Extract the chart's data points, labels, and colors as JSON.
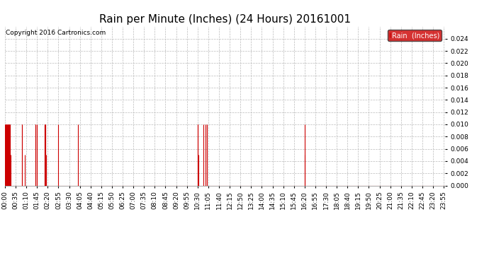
{
  "title": "Rain per Minute (Inches) (24 Hours) 20161001",
  "copyright": "Copyright 2016 Cartronics.com",
  "legend_label": "Rain  (Inches)",
  "legend_bg": "#cc0000",
  "legend_text_color": "#ffffff",
  "bar_color": "#cc0000",
  "background_color": "#ffffff",
  "grid_color": "#bbbbbb",
  "yticks": [
    0.0,
    0.002,
    0.004,
    0.006,
    0.008,
    0.01,
    0.012,
    0.014,
    0.016,
    0.018,
    0.02,
    0.022,
    0.024
  ],
  "title_fontsize": 11,
  "tick_fontsize": 6.5,
  "total_minutes": 1440,
  "rain_events": [
    [
      0,
      0.01
    ],
    [
      1,
      0.01
    ],
    [
      2,
      0.01
    ],
    [
      3,
      0.01
    ],
    [
      4,
      0.01
    ],
    [
      5,
      0.005
    ],
    [
      6,
      0.01
    ],
    [
      7,
      0.01
    ],
    [
      8,
      0.01
    ],
    [
      9,
      0.01
    ],
    [
      10,
      0.01
    ],
    [
      11,
      0.01
    ],
    [
      12,
      0.01
    ],
    [
      13,
      0.01
    ],
    [
      14,
      0.01
    ],
    [
      15,
      0.005
    ],
    [
      16,
      0.01
    ],
    [
      17,
      0.01
    ],
    [
      18,
      0.005
    ],
    [
      55,
      0.01
    ],
    [
      56,
      0.01
    ],
    [
      65,
      0.005
    ],
    [
      100,
      0.01
    ],
    [
      101,
      0.01
    ],
    [
      105,
      0.01
    ],
    [
      130,
      0.01
    ],
    [
      131,
      0.01
    ],
    [
      132,
      0.01
    ],
    [
      133,
      0.01
    ],
    [
      134,
      0.005
    ],
    [
      175,
      0.01
    ],
    [
      240,
      0.01
    ],
    [
      630,
      0.01
    ],
    [
      631,
      0.01
    ],
    [
      632,
      0.005
    ],
    [
      650,
      0.01
    ],
    [
      655,
      0.01
    ],
    [
      660,
      0.01
    ],
    [
      980,
      0.01
    ],
    [
      981,
      0.005
    ]
  ],
  "xtick_positions": [
    0,
    35,
    70,
    105,
    140,
    175,
    210,
    245,
    280,
    315,
    350,
    385,
    420,
    455,
    490,
    525,
    560,
    595,
    630,
    665,
    700,
    735,
    770,
    805,
    840,
    875,
    910,
    945,
    980,
    1015,
    1050,
    1085,
    1120,
    1155,
    1190,
    1225,
    1260,
    1295,
    1330,
    1365,
    1400,
    1435
  ],
  "xtick_labels": [
    "00:00",
    "00:35",
    "01:10",
    "01:45",
    "02:20",
    "02:55",
    "03:30",
    "04:05",
    "04:40",
    "05:15",
    "05:50",
    "06:25",
    "07:00",
    "07:35",
    "08:10",
    "08:45",
    "09:20",
    "09:55",
    "10:30",
    "11:05",
    "11:40",
    "12:15",
    "12:50",
    "13:25",
    "14:00",
    "14:35",
    "15:10",
    "15:45",
    "16:20",
    "16:55",
    "17:30",
    "18:05",
    "18:40",
    "19:15",
    "19:50",
    "20:25",
    "21:00",
    "21:35",
    "22:10",
    "22:45",
    "23:20",
    "23:55"
  ]
}
